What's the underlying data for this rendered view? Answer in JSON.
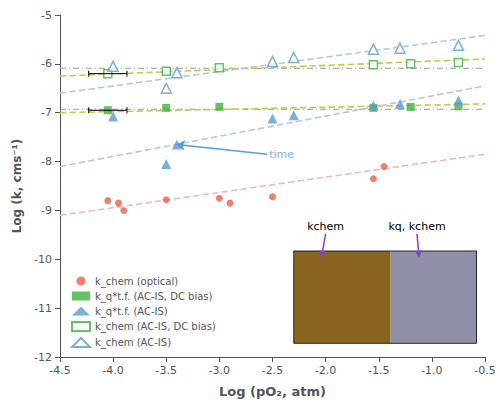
{
  "chart_data": {
    "type": "scatter",
    "xlabel": "Log (pO₂, atm)",
    "ylabel": "Log (k, cms⁻¹)",
    "xlim": [
      -4.5,
      -0.5
    ],
    "ylim": [
      -12,
      -5
    ],
    "xticks": [
      -4.5,
      {
        "value": -4.0,
        "label": "-4.0"
      },
      -3.5,
      {
        "value": -3.0,
        "label": "-3.0"
      },
      -2.5,
      {
        "value": -2.0,
        "label": "-2.0"
      },
      -1.5,
      {
        "value": -1.0,
        "label": "-1.0"
      },
      -0.5
    ],
    "yticks": [
      -12,
      -11,
      -10,
      -9,
      -8,
      -7,
      -6,
      -5
    ],
    "grid": false,
    "legend": "lower left",
    "series": [
      {
        "name": "k_chem (optical)",
        "marker": "circle",
        "color": "#e8604c",
        "x": [
          -4.05,
          -3.95,
          -3.9,
          -3.5,
          -3.0,
          -2.9,
          -2.5,
          -1.55,
          -1.45
        ],
        "values": [
          -8.8,
          -8.85,
          -9.0,
          -8.78,
          -8.75,
          -8.85,
          -8.72,
          -8.35,
          -8.1
        ],
        "fit": {
          "x": [
            -4.5,
            -0.5
          ],
          "values": [
            -9.1,
            -7.85
          ],
          "color": "#f4b8b0",
          "line_style": "dashed"
        }
      },
      {
        "name": "k_q*t.f. (AC-IS, DC bias)",
        "marker": "square",
        "color": "#3db33d",
        "x": [
          -4.05,
          -3.5,
          -3.0,
          -1.55,
          -1.2,
          -0.75
        ],
        "values": [
          -6.95,
          -6.9,
          -6.88,
          -6.9,
          -6.88,
          -6.87
        ],
        "fit": {
          "x": [
            -4.5,
            -0.5
          ],
          "values": [
            -7.0,
            -6.82
          ],
          "color": "#c8c850",
          "line_style": "dashed"
        }
      },
      {
        "name": "k_q*t.f. (AC-IS)",
        "marker": "triangle",
        "color": "#5b9bd5",
        "x": [
          -4.0,
          -3.5,
          -3.4,
          -2.5,
          -2.3,
          -1.55,
          -1.3,
          -0.75
        ],
        "values": [
          -7.08,
          -8.05,
          -7.65,
          -7.12,
          -7.05,
          -6.85,
          -6.82,
          -6.75
        ],
        "fit": {
          "x": [
            -4.5,
            -0.5
          ],
          "values": [
            -8.1,
            -6.45
          ],
          "color": "#b0c8e8",
          "line_style": "dashed"
        }
      },
      {
        "name": "k_chem (AC-IS, DC bias)",
        "marker": "square-open",
        "color": "#3db33d",
        "x": [
          -4.05,
          -3.5,
          -3.0,
          -1.55,
          -1.2,
          -0.75
        ],
        "values": [
          -6.2,
          -6.15,
          -6.08,
          -6.02,
          -6.0,
          -5.97
        ],
        "fit": {
          "x": [
            -4.5,
            -0.5
          ],
          "values": [
            -6.25,
            -5.9
          ],
          "color": "#c8c850",
          "line_style": "dashed"
        }
      },
      {
        "name": "k_chem (AC-IS)",
        "marker": "triangle-open",
        "color": "#5b9bd5",
        "x": [
          -4.0,
          -3.5,
          -3.4,
          -2.5,
          -2.3,
          -1.55,
          -1.3,
          -0.75
        ],
        "values": [
          -6.05,
          -6.5,
          -6.18,
          -5.95,
          -5.87,
          -5.7,
          -5.68,
          -5.62
        ],
        "fit": {
          "x": [
            -4.5,
            -0.5
          ],
          "values": [
            -6.6,
            -5.42
          ],
          "color": "#b0c8e8",
          "line_style": "dashed"
        }
      }
    ],
    "reference_lines": [
      {
        "x": [
          -4.5,
          -0.5
        ],
        "values": [
          -6.93,
          -6.93
        ],
        "color": "#999999",
        "line_style": "dashdot"
      },
      {
        "x": [
          -4.5,
          -0.5
        ],
        "values": [
          -6.09,
          -6.09
        ],
        "color": "#999999",
        "line_style": "dashdot"
      }
    ],
    "error_bars": [
      {
        "x": -4.05,
        "y": -6.95,
        "xerr": 0.18,
        "color": "#000000"
      },
      {
        "x": -4.05,
        "y": -6.2,
        "xerr": 0.18,
        "color": "#000000"
      }
    ],
    "annotations": [
      {
        "text": "time",
        "x": -2.55,
        "y": -7.85,
        "arrow_x": -3.4,
        "arrow_y": -7.65,
        "color": "#5b9bd5"
      }
    ],
    "inset": {
      "colors": [
        "#8B6420",
        "#9090a8"
      ],
      "labels": [
        "kchem",
        "kq, kchem"
      ],
      "arrow_color": "#8844bb"
    }
  }
}
